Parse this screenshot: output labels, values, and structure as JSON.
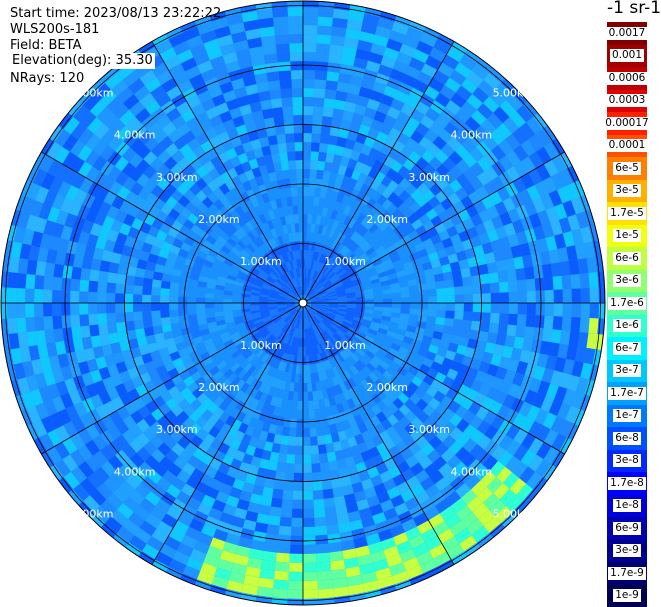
{
  "header": {
    "start_time": "Start time: 2023/08/13 23:22:22",
    "device": "WLS200s-181",
    "field": "Field: BETA",
    "elevation": "Elevation(deg): 35.30",
    "nrays": "NRays: 120"
  },
  "colorbar": {
    "unit_title": "-1 sr-1",
    "labels": [
      "0.0017",
      "0.001",
      "0.0006",
      "0.0003",
      "0.00017",
      "0.0001",
      "6e-5",
      "3e-5",
      "1.7e-5",
      "1e-5",
      "6e-6",
      "3e-6",
      "1.7e-6",
      "1e-6",
      "6e-7",
      "3e-7",
      "1.7e-7",
      "1e-7",
      "6e-8",
      "3e-8",
      "1.7e-8",
      "1e-8",
      "6e-9",
      "3e-9",
      "1.7e-9",
      "1e-9"
    ],
    "colors": [
      "#800000",
      "#a00000",
      "#c00000",
      "#e00000",
      "#ff2000",
      "#ff5000",
      "#ff8000",
      "#ffb000",
      "#ffe000",
      "#f0ff10",
      "#c0ff40",
      "#90ff70",
      "#60ffa0",
      "#30ffd0",
      "#00f0ff",
      "#00c8ff",
      "#00a0ff",
      "#0078ff",
      "#0050ff",
      "#0028ff",
      "#0000ff",
      "#0000d8",
      "#0000b0",
      "#000090",
      "#000070",
      "#000050"
    ]
  },
  "rings": {
    "labels": [
      "1.00km",
      "2.00km",
      "3.00km",
      "4.00km",
      "5.00km"
    ]
  },
  "colors": {
    "background_field": "#1a8cff",
    "ring_stroke": "#000000"
  }
}
